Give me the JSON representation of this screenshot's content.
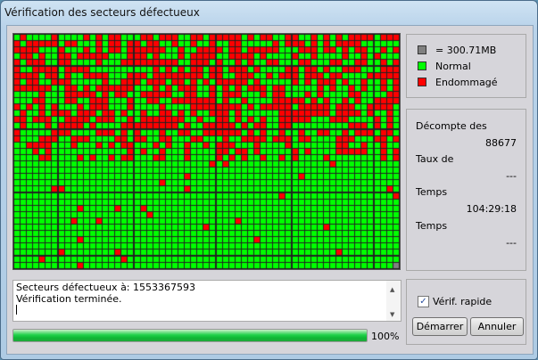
{
  "window": {
    "title": "Vérification des secteurs défectueux"
  },
  "colors": {
    "normal": "#00ff00",
    "damaged": "#ff0000",
    "unit": "#808080",
    "grid_line": "#222222"
  },
  "legend": {
    "unit_label": "= 300.71MB",
    "normal_label": "Normal",
    "damaged_label": "Endommagé"
  },
  "stats": [
    {
      "label": "Décompte des",
      "value": "88677"
    },
    {
      "label": "Taux de",
      "value": "---"
    },
    {
      "label": "Temps",
      "value": "104:29:18"
    },
    {
      "label": "Temps",
      "value": "---"
    }
  ],
  "log": {
    "lines": [
      "Secteurs défectueux à: 1553367593",
      "Vérification terminée."
    ]
  },
  "progress": {
    "percent": 100,
    "label": "100%"
  },
  "options": {
    "quick_check_label": "Vérif. rapide",
    "quick_check_checked": true
  },
  "buttons": {
    "start": "Démarrer",
    "cancel": "Annuler"
  }
}
